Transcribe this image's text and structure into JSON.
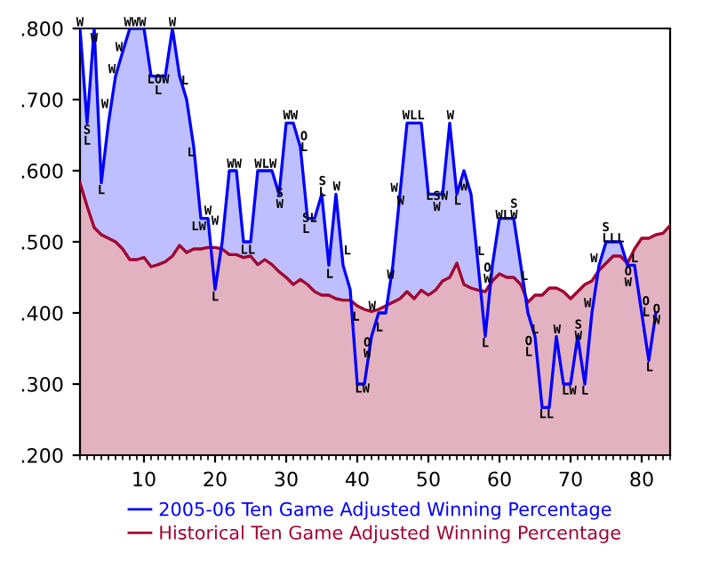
{
  "chart_data": {
    "type": "area",
    "series": [
      {
        "name": "2005-06 Ten Game Adjusted Winning Percentage",
        "color": "#0000ff",
        "x": [
          1,
          2,
          3,
          4,
          5,
          6,
          7,
          8,
          9,
          10,
          11,
          12,
          13,
          14,
          15,
          16,
          17,
          18,
          19,
          20,
          21,
          22,
          23,
          24,
          25,
          26,
          27,
          28,
          29,
          30,
          31,
          32,
          33,
          34,
          35,
          36,
          37,
          38,
          39,
          40,
          41,
          42,
          43,
          44,
          45,
          46,
          47,
          48,
          49,
          50,
          51,
          52,
          53,
          54,
          55,
          56,
          57,
          58,
          59,
          60,
          61,
          62,
          63,
          64,
          65,
          66,
          67,
          68,
          69,
          70,
          71,
          72,
          73,
          74,
          75,
          76,
          77,
          78,
          79,
          80,
          81,
          82
        ],
        "values": [
          0.8,
          0.667,
          0.8,
          0.583,
          0.667,
          0.733,
          0.767,
          0.8,
          0.8,
          0.8,
          0.733,
          0.733,
          0.733,
          0.8,
          0.733,
          0.7,
          0.633,
          0.533,
          0.533,
          0.433,
          0.5,
          0.6,
          0.6,
          0.5,
          0.5,
          0.6,
          0.6,
          0.6,
          0.567,
          0.667,
          0.667,
          0.633,
          0.533,
          0.533,
          0.567,
          0.467,
          0.567,
          0.467,
          0.433,
          0.3,
          0.3,
          0.367,
          0.4,
          0.4,
          0.467,
          0.567,
          0.667,
          0.667,
          0.667,
          0.567,
          0.567,
          0.567,
          0.667,
          0.567,
          0.6,
          0.567,
          0.467,
          0.367,
          0.467,
          0.533,
          0.533,
          0.533,
          0.467,
          0.4,
          0.367,
          0.267,
          0.267,
          0.367,
          0.3,
          0.3,
          0.367,
          0.3,
          0.4,
          0.467,
          0.5,
          0.5,
          0.5,
          0.467,
          0.467,
          0.4,
          0.333,
          0.4
        ]
      },
      {
        "name": "Historical Ten Game Adjusted Winning Percentage",
        "color": "#a00030",
        "x": [
          1,
          2,
          3,
          4,
          5,
          6,
          7,
          8,
          9,
          10,
          11,
          12,
          13,
          14,
          15,
          16,
          17,
          18,
          19,
          20,
          21,
          22,
          23,
          24,
          25,
          26,
          27,
          28,
          29,
          30,
          31,
          32,
          33,
          34,
          35,
          36,
          37,
          38,
          39,
          40,
          41,
          42,
          43,
          44,
          45,
          46,
          47,
          48,
          49,
          50,
          51,
          52,
          53,
          54,
          55,
          56,
          57,
          58,
          59,
          60,
          61,
          62,
          63,
          64,
          65,
          66,
          67,
          68,
          69,
          70,
          71,
          72,
          73,
          74,
          75,
          76,
          77,
          78,
          79,
          80,
          81,
          82,
          83,
          84
        ],
        "values": [
          0.583,
          0.55,
          0.52,
          0.51,
          0.505,
          0.5,
          0.49,
          0.475,
          0.475,
          0.478,
          0.465,
          0.468,
          0.472,
          0.48,
          0.495,
          0.485,
          0.49,
          0.49,
          0.492,
          0.492,
          0.49,
          0.482,
          0.482,
          0.478,
          0.48,
          0.468,
          0.475,
          0.468,
          0.458,
          0.45,
          0.44,
          0.447,
          0.44,
          0.43,
          0.425,
          0.425,
          0.42,
          0.418,
          0.418,
          0.41,
          0.405,
          0.402,
          0.405,
          0.41,
          0.415,
          0.42,
          0.43,
          0.42,
          0.432,
          0.425,
          0.432,
          0.445,
          0.45,
          0.47,
          0.44,
          0.435,
          0.432,
          0.43,
          0.445,
          0.455,
          0.45,
          0.45,
          0.44,
          0.415,
          0.425,
          0.425,
          0.435,
          0.435,
          0.43,
          0.42,
          0.43,
          0.44,
          0.445,
          0.46,
          0.47,
          0.48,
          0.48,
          0.47,
          0.49,
          0.505,
          0.505,
          0.51,
          0.512,
          0.523
        ]
      }
    ],
    "xlim": [
      1,
      84
    ],
    "xticks": [
      10,
      20,
      30,
      40,
      50,
      60,
      70,
      80
    ],
    "ylim": [
      0.2,
      0.8
    ],
    "yticks": [
      {
        "value": 0.2,
        "label": ".200"
      },
      {
        "value": 0.3,
        "label": ".300"
      },
      {
        "value": 0.4,
        "label": ".400"
      },
      {
        "value": 0.5,
        "label": ".500"
      },
      {
        "value": 0.6,
        "label": ".600"
      },
      {
        "value": 0.7,
        "label": ".700"
      },
      {
        "value": 0.8,
        "label": ".800"
      }
    ],
    "grid": false,
    "legend": "bottom",
    "annotations": [
      {
        "text": "W",
        "x": 1,
        "y": 0.808
      },
      {
        "text": "W",
        "x": 3,
        "y": 0.786
      },
      {
        "text": "W",
        "x": 6.5,
        "y": 0.773
      },
      {
        "text": "W",
        "x": 5.5,
        "y": 0.742
      },
      {
        "text": "W",
        "x": 4.5,
        "y": 0.693
      },
      {
        "text": "S\nL",
        "x": 2,
        "y": 0.649
      },
      {
        "text": "L",
        "x": 4,
        "y": 0.572
      },
      {
        "text": "WWW",
        "x": 8.75,
        "y": 0.808
      },
      {
        "text": "W",
        "x": 14,
        "y": 0.808
      },
      {
        "text": "LOW\n L ",
        "x": 12,
        "y": 0.72
      },
      {
        "text": "L",
        "x": 15.75,
        "y": 0.726
      },
      {
        "text": "L",
        "x": 16.6,
        "y": 0.625
      },
      {
        "text": "W",
        "x": 19,
        "y": 0.543
      },
      {
        "text": "LW",
        "x": 17.7,
        "y": 0.521
      },
      {
        "text": "W",
        "x": 20,
        "y": 0.529
      },
      {
        "text": "L",
        "x": 20,
        "y": 0.422
      },
      {
        "text": "WW",
        "x": 22.7,
        "y": 0.609
      },
      {
        "text": "LL",
        "x": 24.6,
        "y": 0.488
      },
      {
        "text": "WLW",
        "x": 27.1,
        "y": 0.609
      },
      {
        "text": "S\nW",
        "x": 29.1,
        "y": 0.56
      },
      {
        "text": "WW",
        "x": 30.6,
        "y": 0.677
      },
      {
        "text": "O\nL",
        "x": 32.5,
        "y": 0.64
      },
      {
        "text": "SL\nL ",
        "x": 33.3,
        "y": 0.525
      },
      {
        "text": "S\nL",
        "x": 35.1,
        "y": 0.577
      },
      {
        "text": "L",
        "x": 36.1,
        "y": 0.454
      },
      {
        "text": "W",
        "x": 37.1,
        "y": 0.577
      },
      {
        "text": "L",
        "x": 38.6,
        "y": 0.487
      },
      {
        "text": "L",
        "x": 39.8,
        "y": 0.394
      },
      {
        "text": "O\nW",
        "x": 41.4,
        "y": 0.35
      },
      {
        "text": "LW",
        "x": 40.7,
        "y": 0.293
      },
      {
        "text": "W",
        "x": 42.1,
        "y": 0.409
      },
      {
        "text": "L",
        "x": 43.1,
        "y": 0.379
      },
      {
        "text": "W",
        "x": 44.7,
        "y": 0.453
      },
      {
        "text": "W",
        "x": 45.2,
        "y": 0.575
      },
      {
        "text": "W",
        "x": 46.1,
        "y": 0.557
      },
      {
        "text": "WLL",
        "x": 47.9,
        "y": 0.677
      },
      {
        "text": "LSW\n W ",
        "x": 51.2,
        "y": 0.556
      },
      {
        "text": "W",
        "x": 53.1,
        "y": 0.677
      },
      {
        "text": "L",
        "x": 54.1,
        "y": 0.557
      },
      {
        "text": "W",
        "x": 55,
        "y": 0.577
      },
      {
        "text": "L",
        "x": 57.4,
        "y": 0.486
      },
      {
        "text": "O\nW",
        "x": 58.3,
        "y": 0.455
      },
      {
        "text": "L",
        "x": 58,
        "y": 0.357
      },
      {
        "text": "  S\nWLW",
        "x": 61,
        "y": 0.545
      },
      {
        "text": "L",
        "x": 63.5,
        "y": 0.451
      },
      {
        "text": "L",
        "x": 65,
        "y": 0.376
      },
      {
        "text": "O\nL",
        "x": 64.1,
        "y": 0.352
      },
      {
        "text": "LL",
        "x": 66.6,
        "y": 0.257
      },
      {
        "text": "W",
        "x": 68.1,
        "y": 0.376
      },
      {
        "text": "LW",
        "x": 69.8,
        "y": 0.29
      },
      {
        "text": "S\nW",
        "x": 71.1,
        "y": 0.375
      },
      {
        "text": "L",
        "x": 72,
        "y": 0.29
      },
      {
        "text": "W",
        "x": 72.4,
        "y": 0.413
      },
      {
        "text": "W",
        "x": 73.3,
        "y": 0.476
      },
      {
        "text": "S  \nLLL",
        "x": 76,
        "y": 0.512
      },
      {
        "text": "L",
        "x": 79,
        "y": 0.476
      },
      {
        "text": "O\nW",
        "x": 78.1,
        "y": 0.45
      },
      {
        "text": "O\nL",
        "x": 80.6,
        "y": 0.408
      },
      {
        "text": "L",
        "x": 81.1,
        "y": 0.323
      },
      {
        "text": "O\nW",
        "x": 82.1,
        "y": 0.397
      }
    ]
  }
}
